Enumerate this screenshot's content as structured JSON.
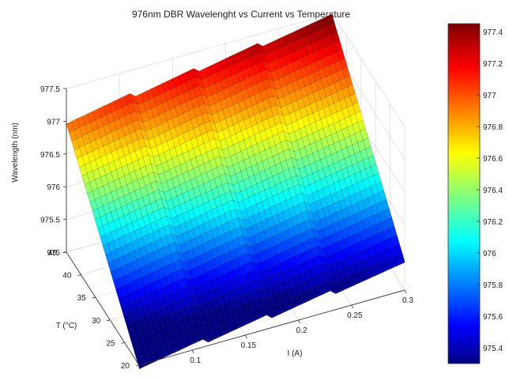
{
  "chart_data": {
    "type": "surface",
    "title": "976nm DBR Wavelenght vs Current vs Temperature",
    "xlabel": "I (A)",
    "ylabel": "T (°C)",
    "zlabel": "Wavelength (nm)",
    "xlim": [
      0.05,
      0.3
    ],
    "ylim": [
      20,
      45
    ],
    "zlim": [
      975,
      977.5
    ],
    "x_ticks": [
      "0.1",
      "0.15",
      "0.2",
      "0.25",
      "0.3"
    ],
    "y_ticks": [
      "20",
      "25",
      "30",
      "35",
      "40",
      "45"
    ],
    "z_ticks": [
      "975",
      "975.5",
      "976",
      "976.5",
      "977",
      "977.5"
    ],
    "colorbar_ticks": [
      "975.4",
      "975.6",
      "975.8",
      "976",
      "976.2",
      "976.4",
      "976.6",
      "976.8",
      "977",
      "977.2",
      "977.4"
    ],
    "colorbar_range": [
      975.3,
      977.45
    ],
    "colormap": "jet",
    "grid": true,
    "surface": {
      "current_A": [
        0.05,
        0.3
      ],
      "temperature_C": [
        20,
        45
      ],
      "wavelength_nm": {
        "at_I_0.05_T_20": 975.0,
        "at_I_0.05_T_45": 977.0,
        "at_I_0.30_T_20": 975.4,
        "at_I_0.30_T_45": 977.45
      },
      "mode_hop_currents_A": [
        0.11,
        0.17,
        0.23
      ]
    }
  }
}
